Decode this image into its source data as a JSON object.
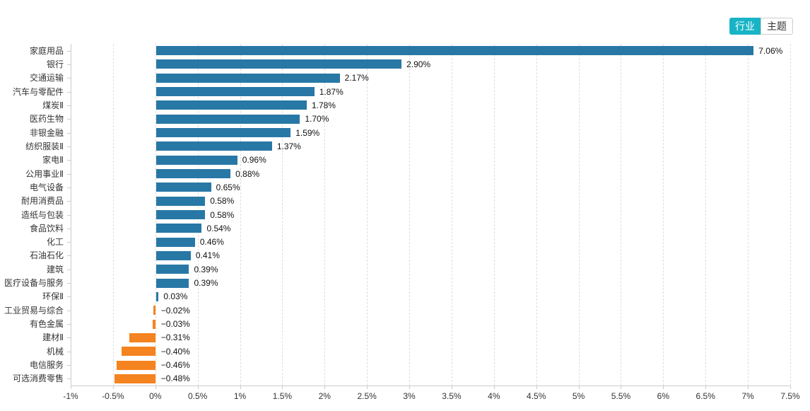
{
  "view_toggle": {
    "options": [
      {
        "label": "行业",
        "selected": true
      },
      {
        "label": "主题",
        "selected": false
      }
    ]
  },
  "colors": {
    "positive_bar": "#2878a6",
    "negative_bar": "#f5831f",
    "toggle_active_bg": "#18b4c6",
    "toggle_active_text": "#ffffff",
    "toggle_inactive_text": "#333333",
    "toggle_inactive_border": "#cccccc",
    "axis_line": "#cccccc",
    "grid_line": "#dddddd",
    "axis_text": "#333333",
    "value_text": "#111111"
  },
  "chart_data": {
    "type": "bar",
    "orientation": "horizontal",
    "title": "",
    "xlabel": "",
    "ylabel": "",
    "grid": "vertical-dashed",
    "legend_position": "none",
    "xlim": [
      -1,
      7.5
    ],
    "categories": [
      "家庭用品",
      "银行",
      "交通运输",
      "汽车与零配件",
      "煤炭Ⅱ",
      "医药生物",
      "非银金融",
      "纺织服装Ⅱ",
      "家电Ⅱ",
      "公用事业Ⅱ",
      "电气设备",
      "耐用消费品",
      "造纸与包装",
      "食品饮料",
      "化工",
      "石油石化",
      "建筑",
      "医疗设备与服务",
      "环保Ⅱ",
      "工业贸易与综合",
      "有色金属",
      "建材Ⅱ",
      "机械",
      "电信服务",
      "可选消费零售"
    ],
    "values": [
      7.06,
      2.9,
      2.17,
      1.87,
      1.78,
      1.7,
      1.59,
      1.37,
      0.96,
      0.88,
      0.65,
      0.58,
      0.58,
      0.54,
      0.46,
      0.41,
      0.39,
      0.39,
      0.03,
      -0.02,
      -0.03,
      -0.31,
      -0.4,
      -0.46,
      -0.48
    ],
    "value_labels": [
      "7.06%",
      "2.90%",
      "2.17%",
      "1.87%",
      "1.78%",
      "1.70%",
      "1.59%",
      "1.37%",
      "0.96%",
      "0.88%",
      "0.65%",
      "0.58%",
      "0.58%",
      "0.54%",
      "0.46%",
      "0.41%",
      "0.39%",
      "0.39%",
      "0.03%",
      "−0.02%",
      "−0.03%",
      "−0.31%",
      "−0.40%",
      "−0.46%",
      "−0.48%"
    ],
    "x_tick_values": [
      -1,
      -0.5,
      0,
      0.5,
      1,
      1.5,
      2,
      2.5,
      3,
      3.5,
      4,
      4.5,
      5,
      5.5,
      6,
      6.5,
      7,
      7.5
    ],
    "x_tick_labels": [
      "-1%",
      "-0.5%",
      "0%",
      "0.5%",
      "1%",
      "1.5%",
      "2%",
      "2.5%",
      "3%",
      "3.5%",
      "4%",
      "4.5%",
      "5%",
      "5.5%",
      "6%",
      "6.5%",
      "7%",
      "7.5%"
    ]
  }
}
